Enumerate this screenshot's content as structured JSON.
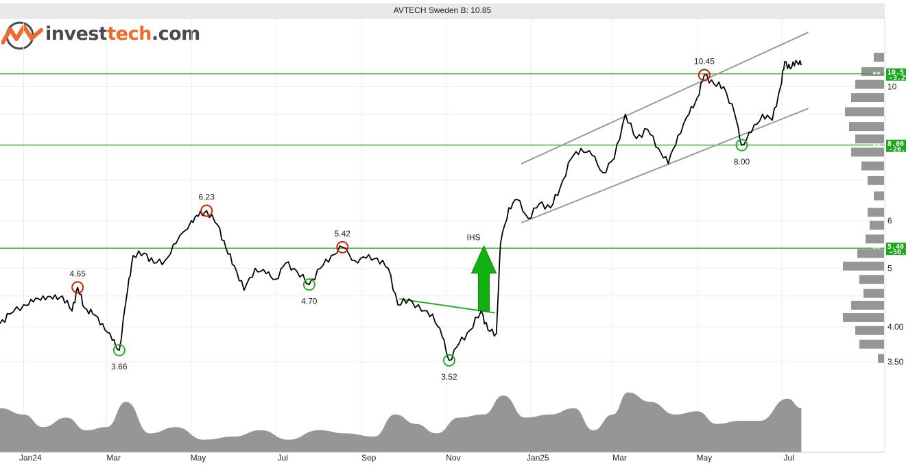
{
  "header": {
    "title": "AVTECH Sweden B: 10.85"
  },
  "logo": {
    "part1": "invest",
    "part2": "tech",
    "part3": ".com"
  },
  "colors": {
    "price": "#000000",
    "support": "#22b022",
    "channel": "#9a9a9a",
    "volume": "#969696",
    "high_marker": "#cc2200",
    "low_marker": "#22b022",
    "badge": "#1fa81f"
  },
  "chart_data": {
    "type": "line",
    "title": "AVTECH Sweden B: 10.85",
    "yscale": "log",
    "ylim": [
      3.22,
      13.0
    ],
    "xlim": [
      "2023-12-15",
      "2025-08-10"
    ],
    "x_ticks": [
      {
        "date": "2024-01-01",
        "label": "Jan24"
      },
      {
        "date": "2024-03-01",
        "label": "Mar"
      },
      {
        "date": "2024-05-01",
        "label": "May"
      },
      {
        "date": "2024-07-01",
        "label": "Jul"
      },
      {
        "date": "2024-09-01",
        "label": "Sep"
      },
      {
        "date": "2024-11-01",
        "label": "Nov"
      },
      {
        "date": "2025-01-01",
        "label": "Jan25"
      },
      {
        "date": "2025-03-01",
        "label": "Mar"
      },
      {
        "date": "2025-05-01",
        "label": "May"
      },
      {
        "date": "2025-07-01",
        "label": "Jul"
      }
    ],
    "y_ticks": [
      {
        "value": 3.5,
        "label": "3.50"
      },
      {
        "value": 4.0,
        "label": "4.00"
      },
      {
        "value": 5,
        "label": "5"
      },
      {
        "value": 6,
        "label": "6"
      },
      {
        "value": 10,
        "label": "10"
      }
    ],
    "grid": true,
    "series": [
      {
        "values": [
          [
            "2023-12-15",
            4.05
          ],
          [
            "2023-12-22",
            4.2
          ],
          [
            "2024-01-01",
            4.35
          ],
          [
            "2024-01-08",
            4.4
          ],
          [
            "2024-01-15",
            4.5
          ],
          [
            "2024-01-22",
            4.45
          ],
          [
            "2024-01-29",
            4.5
          ],
          [
            "2024-02-05",
            4.25
          ],
          [
            "2024-02-09",
            4.65
          ],
          [
            "2024-02-14",
            4.3
          ],
          [
            "2024-02-20",
            4.2
          ],
          [
            "2024-02-27",
            4.05
          ],
          [
            "2024-03-05",
            3.8
          ],
          [
            "2024-03-10",
            3.66
          ],
          [
            "2024-03-16",
            4.6
          ],
          [
            "2024-03-20",
            5.25
          ],
          [
            "2024-03-28",
            5.3
          ],
          [
            "2024-04-04",
            5.1
          ],
          [
            "2024-04-12",
            5.15
          ],
          [
            "2024-04-20",
            5.5
          ],
          [
            "2024-05-01",
            6.0
          ],
          [
            "2024-05-06",
            6.1
          ],
          [
            "2024-05-12",
            6.23
          ],
          [
            "2024-05-20",
            5.9
          ],
          [
            "2024-05-26",
            5.4
          ],
          [
            "2024-06-01",
            5.05
          ],
          [
            "2024-06-08",
            4.6
          ],
          [
            "2024-06-16",
            5.0
          ],
          [
            "2024-06-24",
            4.9
          ],
          [
            "2024-07-01",
            4.8
          ],
          [
            "2024-07-08",
            5.1
          ],
          [
            "2024-07-16",
            4.95
          ],
          [
            "2024-07-25",
            4.7
          ],
          [
            "2024-08-02",
            5.0
          ],
          [
            "2024-08-10",
            5.25
          ],
          [
            "2024-08-18",
            5.42
          ],
          [
            "2024-08-27",
            5.15
          ],
          [
            "2024-09-04",
            5.2
          ],
          [
            "2024-09-12",
            5.2
          ],
          [
            "2024-09-20",
            5.0
          ],
          [
            "2024-09-27",
            4.35
          ],
          [
            "2024-10-05",
            4.45
          ],
          [
            "2024-10-14",
            4.25
          ],
          [
            "2024-10-22",
            4.2
          ],
          [
            "2024-10-29",
            3.85
          ],
          [
            "2024-11-03",
            3.52
          ],
          [
            "2024-11-10",
            3.75
          ],
          [
            "2024-11-18",
            3.95
          ],
          [
            "2024-11-26",
            4.25
          ],
          [
            "2024-12-01",
            3.95
          ],
          [
            "2024-12-07",
            3.9
          ],
          [
            "2024-12-10",
            5.5
          ],
          [
            "2024-12-16",
            6.3
          ],
          [
            "2024-12-22",
            6.5
          ],
          [
            "2024-12-30",
            6.05
          ],
          [
            "2025-01-07",
            6.4
          ],
          [
            "2025-01-15",
            6.3
          ],
          [
            "2025-01-22",
            6.8
          ],
          [
            "2025-01-30",
            7.6
          ],
          [
            "2025-02-06",
            7.9
          ],
          [
            "2025-02-14",
            7.7
          ],
          [
            "2025-02-22",
            7.2
          ],
          [
            "2025-03-02",
            7.6
          ],
          [
            "2025-03-10",
            9.0
          ],
          [
            "2025-03-18",
            8.2
          ],
          [
            "2025-03-26",
            8.5
          ],
          [
            "2025-04-03",
            7.9
          ],
          [
            "2025-04-10",
            7.45
          ],
          [
            "2025-04-17",
            8.3
          ],
          [
            "2025-04-25",
            9.0
          ],
          [
            "2025-05-01",
            9.6
          ],
          [
            "2025-05-06",
            10.45
          ],
          [
            "2025-05-13",
            10.1
          ],
          [
            "2025-05-20",
            10.0
          ],
          [
            "2025-05-28",
            9.0
          ],
          [
            "2025-06-02",
            8.0
          ],
          [
            "2025-06-09",
            8.4
          ],
          [
            "2025-06-17",
            9.0
          ],
          [
            "2025-06-24",
            8.8
          ],
          [
            "2025-06-30",
            10.0
          ],
          [
            "2025-07-03",
            11.0
          ],
          [
            "2025-07-07",
            10.7
          ],
          [
            "2025-07-11",
            11.05
          ],
          [
            "2025-07-15",
            10.85
          ]
        ]
      }
    ],
    "support_levels": [
      {
        "value": 10.5,
        "label": "10.5",
        "pct": "-3.2%",
        "stars": "**"
      },
      {
        "value": 8.0,
        "label": "8.00",
        "pct": "-26.3",
        "stars": "**"
      },
      {
        "value": 5.4,
        "label": "5.40",
        "pct": "-50.2",
        "stars": "**"
      }
    ],
    "channel": {
      "upper": [
        [
          "2024-12-25",
          7.45
        ],
        [
          "2025-07-20",
          12.3
        ]
      ],
      "lower": [
        [
          "2024-12-25",
          5.95
        ],
        [
          "2025-07-20",
          9.2
        ]
      ]
    },
    "ihs": {
      "label": "IHS",
      "neckline": [
        [
          "2024-09-28",
          4.45
        ],
        [
          "2024-12-06",
          4.22
        ]
      ],
      "arrow": {
        "date": "2024-11-28",
        "from": 4.25,
        "to": 5.45
      }
    },
    "annotations": [
      {
        "date": "2024-02-09",
        "value": 4.65,
        "label": "4.65",
        "kind": "high"
      },
      {
        "date": "2024-03-10",
        "value": 3.66,
        "label": "3.66",
        "kind": "low"
      },
      {
        "date": "2024-05-12",
        "value": 6.23,
        "label": "6.23",
        "kind": "high"
      },
      {
        "date": "2024-07-25",
        "value": 4.7,
        "label": "4.70",
        "kind": "low"
      },
      {
        "date": "2024-08-18",
        "value": 5.42,
        "label": "5.42",
        "kind": "high"
      },
      {
        "date": "2024-11-03",
        "value": 3.52,
        "label": "3.52",
        "kind": "low"
      },
      {
        "date": "2025-05-06",
        "value": 10.45,
        "label": "10.45",
        "kind": "high"
      },
      {
        "date": "2025-06-02",
        "value": 8.0,
        "label": "8.00",
        "kind": "low"
      }
    ],
    "volume_profile": [
      [
        11.2,
        0.25
      ],
      [
        10.6,
        0.55
      ],
      [
        10.1,
        0.7
      ],
      [
        9.6,
        0.8
      ],
      [
        9.1,
        0.95
      ],
      [
        8.6,
        0.85
      ],
      [
        8.2,
        0.7
      ],
      [
        7.8,
        0.8
      ],
      [
        7.4,
        0.55
      ],
      [
        7.0,
        0.4
      ],
      [
        6.6,
        0.25
      ],
      [
        6.2,
        0.4
      ],
      [
        5.9,
        0.35
      ],
      [
        5.6,
        0.45
      ],
      [
        5.3,
        0.65
      ],
      [
        5.05,
        1.0
      ],
      [
        4.8,
        0.6
      ],
      [
        4.55,
        0.5
      ],
      [
        4.35,
        0.8
      ],
      [
        4.15,
        1.0
      ],
      [
        3.95,
        0.7
      ],
      [
        3.75,
        0.6
      ],
      [
        3.55,
        0.15
      ]
    ],
    "volume": [
      [
        "2023-12-15",
        0.7
      ],
      [
        "2024-01-01",
        0.6
      ],
      [
        "2024-01-15",
        0.4
      ],
      [
        "2024-02-01",
        0.55
      ],
      [
        "2024-02-15",
        0.35
      ],
      [
        "2024-03-01",
        0.4
      ],
      [
        "2024-03-15",
        0.8
      ],
      [
        "2024-04-01",
        0.3
      ],
      [
        "2024-04-20",
        0.4
      ],
      [
        "2024-05-10",
        0.2
      ],
      [
        "2024-06-01",
        0.25
      ],
      [
        "2024-06-20",
        0.35
      ],
      [
        "2024-07-10",
        0.2
      ],
      [
        "2024-08-01",
        0.35
      ],
      [
        "2024-08-20",
        0.3
      ],
      [
        "2024-09-10",
        0.25
      ],
      [
        "2024-09-25",
        0.6
      ],
      [
        "2024-10-10",
        0.45
      ],
      [
        "2024-10-25",
        0.3
      ],
      [
        "2024-11-10",
        0.55
      ],
      [
        "2024-11-28",
        0.6
      ],
      [
        "2024-12-12",
        0.9
      ],
      [
        "2024-12-28",
        0.55
      ],
      [
        "2025-01-15",
        0.6
      ],
      [
        "2025-02-01",
        0.7
      ],
      [
        "2025-02-15",
        0.35
      ],
      [
        "2025-03-01",
        0.6
      ],
      [
        "2025-03-12",
        0.95
      ],
      [
        "2025-03-28",
        0.8
      ],
      [
        "2025-04-15",
        0.6
      ],
      [
        "2025-05-01",
        0.65
      ],
      [
        "2025-05-15",
        0.45
      ],
      [
        "2025-06-01",
        0.5
      ],
      [
        "2025-06-15",
        0.5
      ],
      [
        "2025-07-05",
        0.85
      ],
      [
        "2025-07-15",
        0.7
      ]
    ]
  }
}
